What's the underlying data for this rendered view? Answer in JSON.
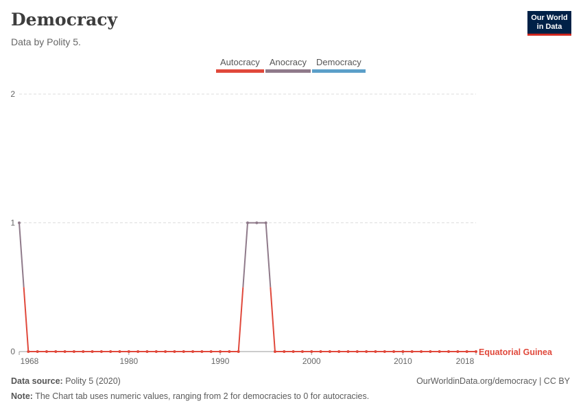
{
  "header": {
    "title": "Democracy",
    "subtitle": "Data by Polity 5.",
    "logo_line1": "Our World",
    "logo_line2": "in Data"
  },
  "legend": [
    {
      "label": "Autocracy",
      "color": "#e0483b"
    },
    {
      "label": "Anocracy",
      "color": "#8f7a8a"
    },
    {
      "label": "Democracy",
      "color": "#5b9fc9"
    }
  ],
  "footer": {
    "source_label": "Data source:",
    "source_text": "Polity 5 (2020)",
    "note_label": "Note:",
    "note_text": "The Chart tab uses numeric values, ranging from 2 for democracies to 0 for autocracies.",
    "url": "OurWorldinData.org/democracy | CC BY"
  },
  "chart_data": {
    "type": "line",
    "title": "Democracy",
    "xlim": [
      1968,
      2018
    ],
    "ylim": [
      0,
      2
    ],
    "x_ticks": [
      "1968",
      "1980",
      "1990",
      "2000",
      "2010",
      "2018"
    ],
    "y_ticks": [
      "0",
      "1",
      "2"
    ],
    "grid": true,
    "series": [
      {
        "name": "Equatorial Guinea",
        "color": "#e0483b",
        "x": [
          1968,
          1969,
          1970,
          1971,
          1972,
          1973,
          1974,
          1975,
          1976,
          1977,
          1978,
          1979,
          1980,
          1981,
          1982,
          1983,
          1984,
          1985,
          1986,
          1987,
          1988,
          1989,
          1990,
          1991,
          1992,
          1993,
          1994,
          1995,
          1996,
          1997,
          1998,
          1999,
          2000,
          2001,
          2002,
          2003,
          2004,
          2005,
          2006,
          2007,
          2008,
          2009,
          2010,
          2011,
          2012,
          2013,
          2014,
          2015,
          2016,
          2017,
          2018
        ],
        "values": [
          1,
          0,
          0,
          0,
          0,
          0,
          0,
          0,
          0,
          0,
          0,
          0,
          0,
          0,
          0,
          0,
          0,
          0,
          0,
          0,
          0,
          0,
          0,
          0,
          0,
          1,
          1,
          1,
          0,
          0,
          0,
          0,
          0,
          0,
          0,
          0,
          0,
          0,
          0,
          0,
          0,
          0,
          0,
          0,
          0,
          0,
          0,
          0,
          0,
          0,
          0
        ]
      }
    ]
  }
}
